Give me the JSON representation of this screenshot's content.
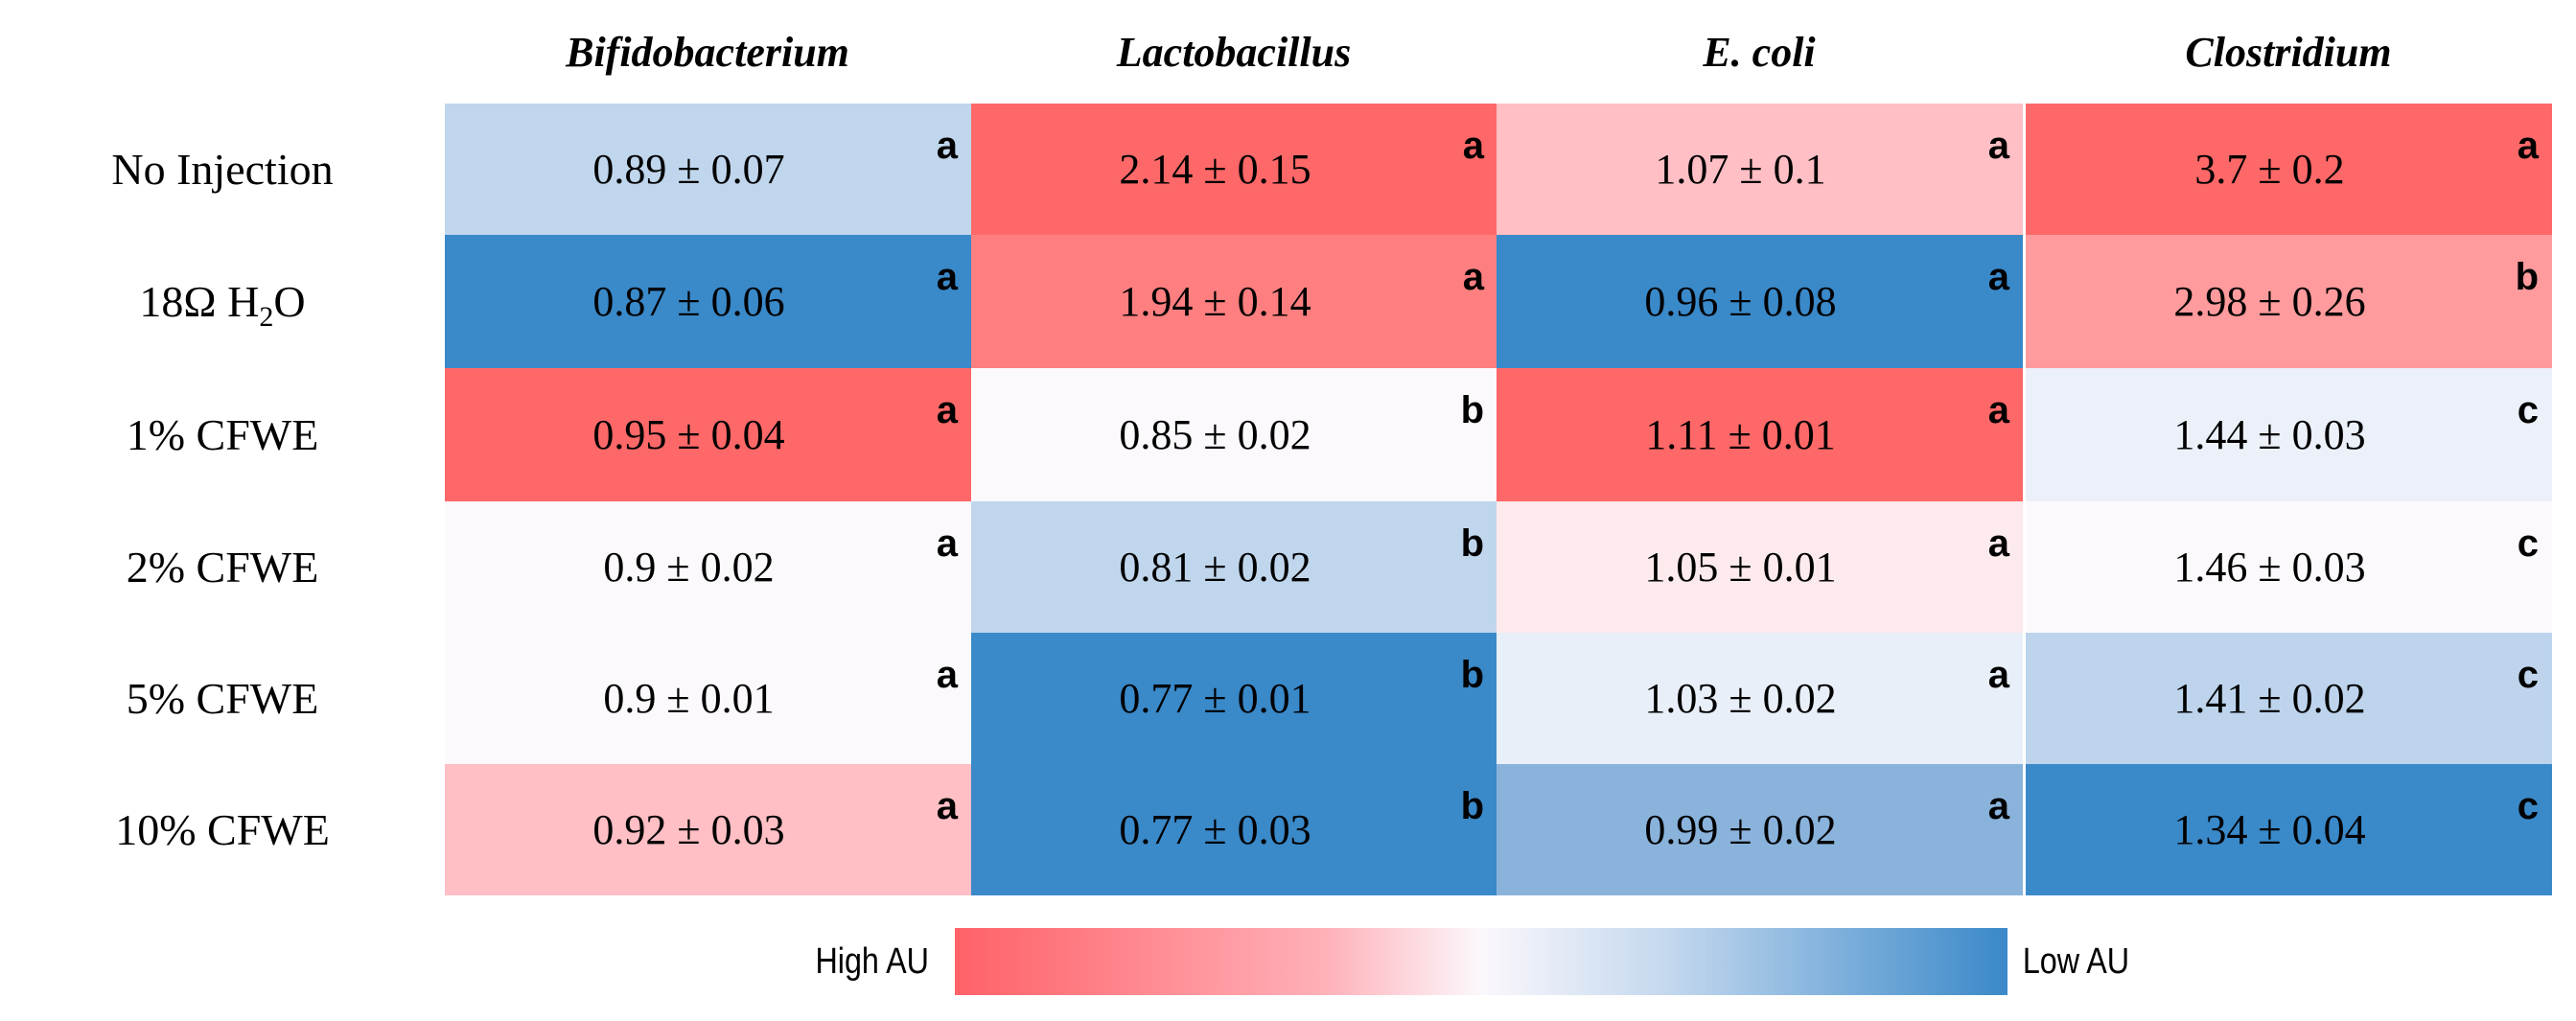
{
  "chart_data": {
    "type": "heatmap",
    "columns": [
      "Bifidobacterium",
      "Lactobacillus",
      "E. coli",
      "Clostridium"
    ],
    "rows": [
      "No Injection",
      "18Ω H2O",
      "1% CFWE",
      "2% CFWE",
      "5% CFWE",
      "10% CFWE"
    ],
    "row_labels_display": [
      {
        "main": "No Injection"
      },
      {
        "main": "18Ω H",
        "sub": "2",
        "tail": "O"
      },
      {
        "main": "1% CFWE"
      },
      {
        "main": "2% CFWE"
      },
      {
        "main": "5% CFWE"
      },
      {
        "main": "10% CFWE"
      }
    ],
    "cells": [
      [
        {
          "text": "0.89 ± 0.07",
          "mean": 0.89,
          "sd": 0.07,
          "sig": "a",
          "color": "#c0d6ec"
        },
        {
          "text": "2.14 ± 0.15",
          "mean": 2.14,
          "sd": 0.15,
          "sig": "a",
          "color": "#ff6868"
        },
        {
          "text": "1.07 ± 0.1",
          "mean": 1.07,
          "sd": 0.1,
          "sig": "a",
          "color": "#ffbfc4"
        },
        {
          "text": "3.7 ± 0.2",
          "mean": 3.7,
          "sd": 0.2,
          "sig": "a",
          "color": "#ff6868"
        }
      ],
      [
        {
          "text": "0.87 ± 0.06",
          "mean": 0.87,
          "sd": 0.06,
          "sig": "a",
          "color": "#3a89c9"
        },
        {
          "text": "1.94 ± 0.14",
          "mean": 1.94,
          "sd": 0.14,
          "sig": "a",
          "color": "#ff7f80"
        },
        {
          "text": "0.96 ± 0.08",
          "mean": 0.96,
          "sd": 0.08,
          "sig": "a",
          "color": "#3a89c9"
        },
        {
          "text": "2.98 ± 0.26",
          "mean": 2.98,
          "sd": 0.26,
          "sig": "b",
          "color": "#ff9b9d"
        }
      ],
      [
        {
          "text": "0.95 ± 0.04",
          "mean": 0.95,
          "sd": 0.04,
          "sig": "a",
          "color": "#ff6868"
        },
        {
          "text": "0.85 ± 0.02",
          "mean": 0.85,
          "sd": 0.02,
          "sig": "b",
          "color": "#fcf9fc"
        },
        {
          "text": "1.11 ± 0.01",
          "mean": 1.11,
          "sd": 0.01,
          "sig": "a",
          "color": "#ff6868"
        },
        {
          "text": "1.44 ± 0.03",
          "mean": 1.44,
          "sd": 0.03,
          "sig": "c",
          "color": "#ebf0f9"
        }
      ],
      [
        {
          "text": "0.9 ± 0.02",
          "mean": 0.9,
          "sd": 0.02,
          "sig": "a",
          "color": "#fbf9fc"
        },
        {
          "text": "0.81 ± 0.02",
          "mean": 0.81,
          "sd": 0.02,
          "sig": "b",
          "color": "#c0d6ec"
        },
        {
          "text": "1.05 ± 0.01",
          "mean": 1.05,
          "sd": 0.01,
          "sig": "a",
          "color": "#fdeaec"
        },
        {
          "text": "1.46 ± 0.03",
          "mean": 1.46,
          "sd": 0.03,
          "sig": "c",
          "color": "#fcf9fc"
        }
      ],
      [
        {
          "text": "0.9 ± 0.01",
          "mean": 0.9,
          "sd": 0.01,
          "sig": "a",
          "color": "#fbf9fc"
        },
        {
          "text": "0.77 ± 0.01",
          "mean": 0.77,
          "sd": 0.01,
          "sig": "b",
          "color": "#3a89c9"
        },
        {
          "text": "1.03 ± 0.02",
          "mean": 1.03,
          "sd": 0.02,
          "sig": "a",
          "color": "#e8eff8"
        },
        {
          "text": "1.41 ± 0.02",
          "mean": 1.41,
          "sd": 0.02,
          "sig": "c",
          "color": "#bdd4ec"
        }
      ],
      [
        {
          "text": "0.92 ± 0.03",
          "mean": 0.92,
          "sd": 0.03,
          "sig": "a",
          "color": "#ffbfc4"
        },
        {
          "text": "0.77 ± 0.03",
          "mean": 0.77,
          "sd": 0.03,
          "sig": "b",
          "color": "#3a89c9"
        },
        {
          "text": "0.99 ± 0.02",
          "mean": 0.99,
          "sd": 0.02,
          "sig": "a",
          "color": "#8ab3dc"
        },
        {
          "text": "1.34 ± 0.04",
          "mean": 1.34,
          "sd": 0.04,
          "sig": "c",
          "color": "#3a89c9"
        }
      ]
    ],
    "legend": {
      "high_label": "High AU",
      "low_label": "Low AU",
      "high_color": "#ff6168",
      "low_color": "#3a89c9",
      "placement": "bottom"
    }
  }
}
